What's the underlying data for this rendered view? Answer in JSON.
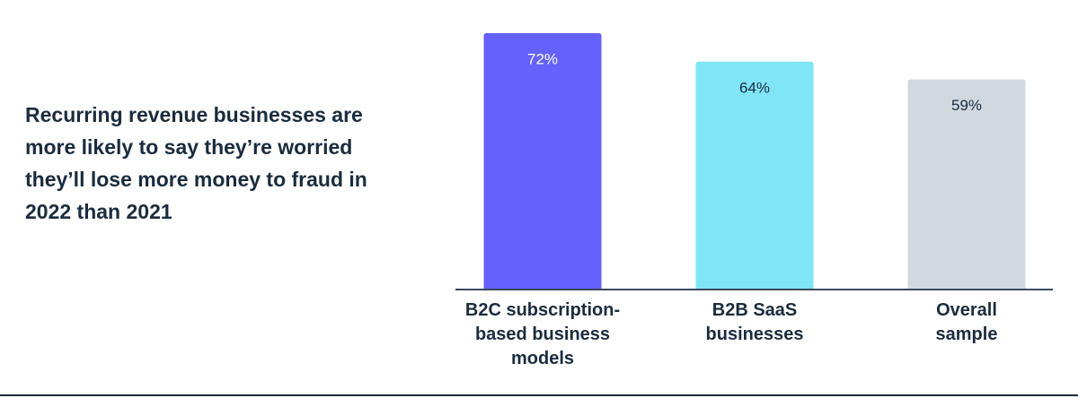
{
  "chart_data": {
    "type": "bar",
    "title": "Recurring revenue businesses are more likely to say they’re worried they’ll lose more money to fraud in 2022 than 2021",
    "categories": [
      "B2C subscription-based business models",
      "B2B SaaS businesses",
      "Overall sample"
    ],
    "values": [
      72,
      64,
      59
    ],
    "value_labels": [
      "72%",
      "64%",
      "59%"
    ],
    "colors": [
      "#6461fc",
      "#80e5f7",
      "#d1d9e0"
    ]
  }
}
